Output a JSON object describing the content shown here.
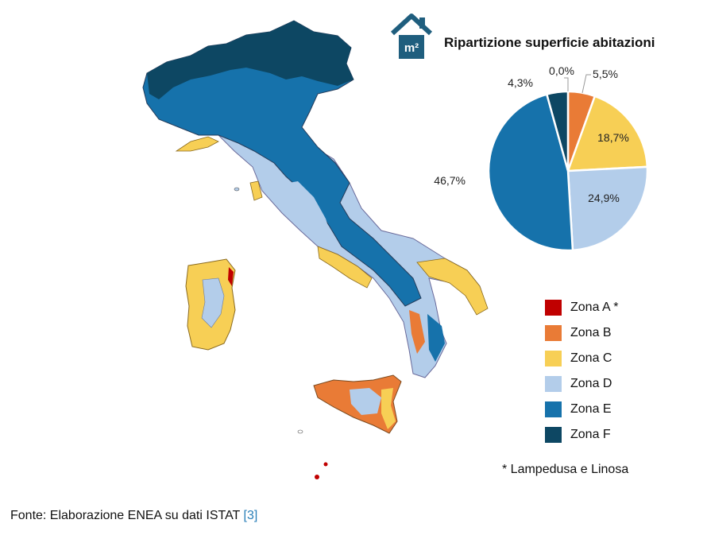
{
  "source": {
    "text": "Fonte: Elaborazione ENEA su dati ISTAT",
    "ref": "[3]"
  },
  "icon": {
    "name": "house-m2-icon",
    "label": "m²",
    "color": "#1f5e7e"
  },
  "legend": {
    "items": [
      {
        "label": "Zona A *",
        "color": "#c00000"
      },
      {
        "label": "Zona B",
        "color": "#e97b36"
      },
      {
        "label": "Zona C",
        "color": "#f7cf55"
      },
      {
        "label": "Zona D",
        "color": "#b3cdea"
      },
      {
        "label": "Zona E",
        "color": "#1672ab"
      },
      {
        "label": "Zona F",
        "color": "#0d4763"
      }
    ],
    "note": "* Lampedusa e Linosa"
  },
  "chart_data": {
    "type": "pie",
    "title": "Ripartizione superficie abitazioni",
    "categories": [
      "Zona A *",
      "Zona B",
      "Zona C",
      "Zona D",
      "Zona E",
      "Zona F"
    ],
    "values": [
      0.0,
      5.5,
      18.7,
      24.9,
      46.7,
      4.3
    ],
    "labels": [
      "0,0%",
      "5,5%",
      "18,7%",
      "24,9%",
      "46,7%",
      "4,3%"
    ],
    "colors": [
      "#c00000",
      "#e97b36",
      "#f7cf55",
      "#b3cdea",
      "#1672ab",
      "#0d4763"
    ]
  }
}
